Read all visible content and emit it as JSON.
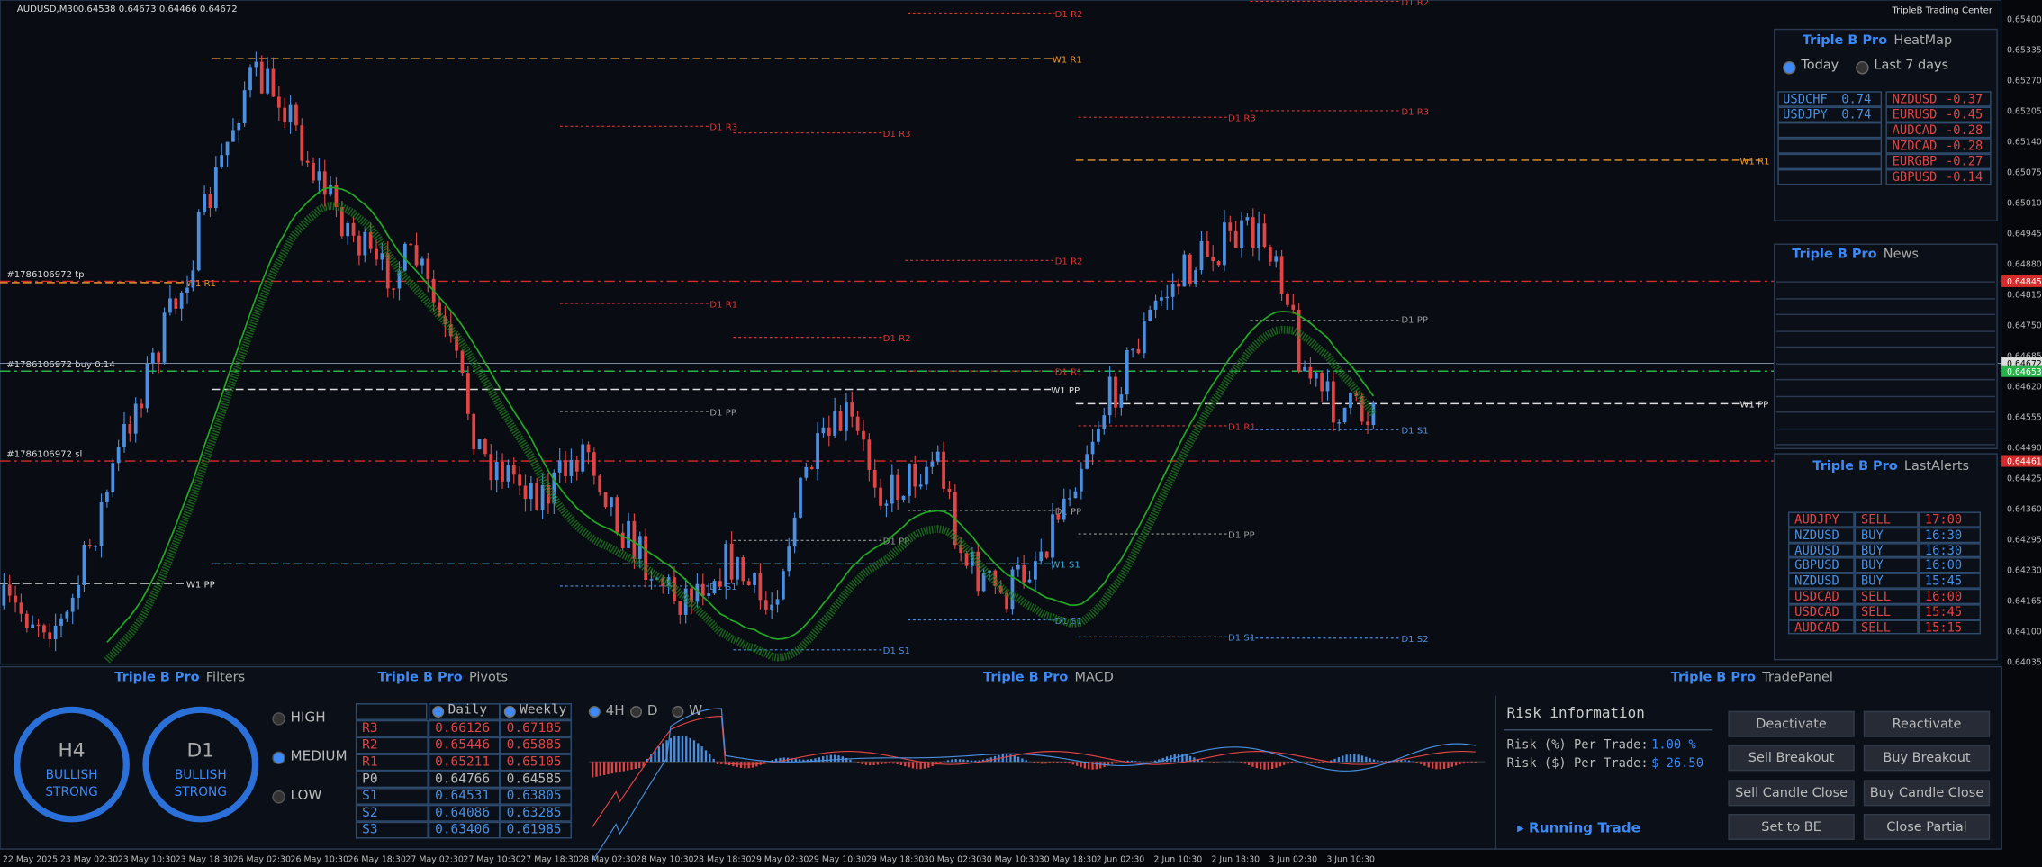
{
  "header": {
    "symbol": "AUDUSD,M30",
    "quote": "0.64538 0.64673 0.64466 0.64672",
    "brand": "TripleB Trading Center"
  },
  "price_axis": [
    "0.65400",
    "0.65335",
    "0.65270",
    "0.65205",
    "0.65140",
    "0.65075",
    "0.65010",
    "0.64945",
    "0.64880",
    "0.64815",
    "0.64750",
    "0.64685",
    "0.64620",
    "0.64555",
    "0.64490",
    "0.64425",
    "0.64360",
    "0.64295",
    "0.64230",
    "0.64165",
    "0.64100",
    "0.64035"
  ],
  "price_tags": [
    "0.64845",
    "0.64672",
    "0.64653",
    "0.64461"
  ],
  "time_axis": [
    "22 May 2025",
    "23 May 02:30",
    "23 May 10:30",
    "23 May 18:30",
    "26 May 02:30",
    "26 May 10:30",
    "26 May 18:30",
    "27 May 02:30",
    "27 May 10:30",
    "27 May 18:30",
    "28 May 02:30",
    "28 May 10:30",
    "28 May 18:30",
    "29 May 02:30",
    "29 May 10:30",
    "29 May 18:30",
    "30 May 02:30",
    "30 May 10:30",
    "30 May 18:30",
    "2 Jun 02:30",
    "2 Jun 10:30",
    "2 Jun 18:30",
    "3 Jun 02:30",
    "3 Jun 10:30"
  ],
  "trade_labels": [
    "#1786106972 tp",
    "#1786106972 buy 0.14",
    "#1786106972 sl"
  ],
  "level_labels": [
    "D1 R2",
    "D1 R2",
    "W1 R1",
    "D1 R3",
    "D1 R3",
    "D1 R3",
    "D1 R3",
    "W1 R1",
    "W1 R1",
    "D1 R2",
    "D1 R1",
    "D1 R2",
    "D1 PP",
    "D1 R1",
    "W1 PP",
    "W1 PP",
    "D1 PP",
    "D1 R1",
    "D1 S1",
    "D1 PP",
    "D1 PP",
    "D1 PP",
    "W1 S1",
    "W1 PP",
    "D1 S1",
    "D1 S1",
    "D1 S1",
    "D1 S2",
    "D1 S1"
  ],
  "heatmap": {
    "brand": "Triple B Pro",
    "title": "HeatMap",
    "options": [
      "Today",
      "Last 7 days"
    ],
    "strong": [
      [
        "USDCHF",
        "0.74"
      ],
      [
        "USDJPY",
        "0.74"
      ]
    ],
    "weak": [
      [
        "NZDUSD",
        "-0.37"
      ],
      [
        "EURUSD",
        "-0.45"
      ],
      [
        "AUDCAD",
        "-0.28"
      ],
      [
        "NZDCAD",
        "-0.28"
      ],
      [
        "EURGBP",
        "-0.27"
      ],
      [
        "GBPUSD",
        "-0.14"
      ]
    ]
  },
  "news": {
    "brand": "Triple B Pro",
    "title": "News"
  },
  "alerts": {
    "brand": "Triple B Pro",
    "title": "LastAlerts",
    "rows": [
      [
        "AUDJPY",
        "SELL",
        "17:00"
      ],
      [
        "NZDUSD",
        "BUY",
        "16:30"
      ],
      [
        "AUDUSD",
        "BUY",
        "16:30"
      ],
      [
        "GBPUSD",
        "BUY",
        "16:00"
      ],
      [
        "NZDUSD",
        "BUY",
        "15:45"
      ],
      [
        "USDCAD",
        "SELL",
        "16:00"
      ],
      [
        "USDCAD",
        "SELL",
        "15:45"
      ],
      [
        "AUDCAD",
        "SELL",
        "15:15"
      ]
    ]
  },
  "filters": {
    "brand": "Triple B Pro",
    "title": "Filters",
    "gauges": [
      {
        "tf": "H4",
        "bias": [
          "BULLISH",
          "STRONG"
        ]
      },
      {
        "tf": "D1",
        "bias": [
          "BULLISH",
          "STRONG"
        ]
      }
    ],
    "levels": [
      "HIGH",
      "MEDIUM",
      "LOW"
    ]
  },
  "pivots": {
    "brand": "Triple B Pro",
    "title": "Pivots",
    "columns": [
      "Daily",
      "Weekly"
    ],
    "rows": [
      [
        "R3",
        "0.66126",
        "0.67185"
      ],
      [
        "R2",
        "0.65446",
        "0.65885"
      ],
      [
        "R1",
        "0.65211",
        "0.65105"
      ],
      [
        "P0",
        "0.64766",
        "0.64585"
      ],
      [
        "S1",
        "0.64531",
        "0.63805"
      ],
      [
        "S2",
        "0.64086",
        "0.63285"
      ],
      [
        "S3",
        "0.63406",
        "0.61985"
      ]
    ]
  },
  "macd": {
    "brand": "Triple B Pro",
    "title": "MACD",
    "timeframes": [
      "4H",
      "D",
      "W"
    ]
  },
  "trade_panel": {
    "brand": "Triple B Pro",
    "title": "TradePanel",
    "risk_title": "Risk information",
    "risk_rows": [
      [
        "Risk (%) Per Trade:",
        "1.00 %"
      ],
      [
        "Risk ($) Per Trade:",
        "$ 26.50"
      ]
    ],
    "buttons": [
      "Deactivate",
      "Reactivate",
      "Sell Breakout",
      "Buy Breakout",
      "Sell Candle Close",
      "Buy Candle Close",
      "Set to BE",
      "Close Partial"
    ],
    "running": "Running Trade"
  }
}
